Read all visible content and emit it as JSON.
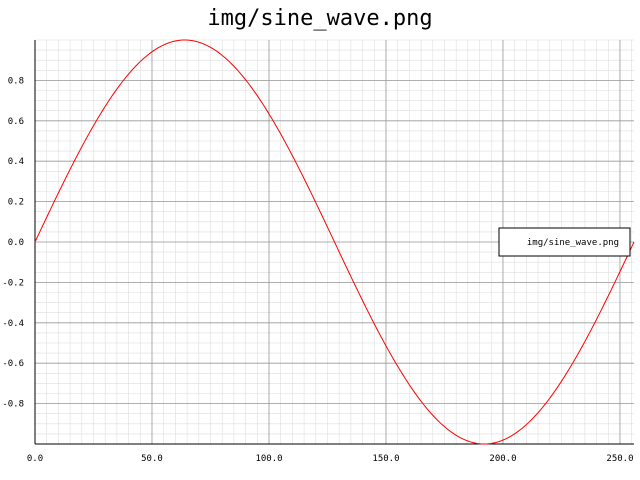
{
  "chart_data": {
    "type": "line",
    "title": "img/sine_wave.png",
    "xlabel": "",
    "ylabel": "",
    "xlim": [
      0,
      256
    ],
    "ylim": [
      -1,
      1
    ],
    "x_ticks": [
      0,
      50,
      100,
      150,
      200,
      250
    ],
    "x_tick_labels": [
      "0.0",
      "50.0",
      "100.0",
      "150.0",
      "200.0",
      "250.0"
    ],
    "y_ticks": [
      -0.8,
      -0.6,
      -0.4,
      -0.2,
      0.0,
      0.2,
      0.4,
      0.6,
      0.8
    ],
    "y_tick_labels": [
      "-0.8",
      "-0.6",
      "-0.4",
      "-0.2",
      "0.0",
      "0.2",
      "0.4",
      "0.6",
      "0.8"
    ],
    "grid": true,
    "minor_grid": true,
    "legend_position": "right-center",
    "series": [
      {
        "name": "img/sine_wave.png",
        "color": "#ff0000",
        "function": "sin(2*pi*x/256)",
        "x": [
          0,
          16,
          32,
          48,
          64,
          80,
          96,
          112,
          128,
          144,
          160,
          176,
          192,
          208,
          224,
          240,
          256
        ],
        "y": [
          0.0,
          0.383,
          0.707,
          0.924,
          1.0,
          0.924,
          0.707,
          0.383,
          0.0,
          -0.383,
          -0.707,
          -0.924,
          -1.0,
          -0.924,
          -0.707,
          -0.383,
          0.0
        ]
      }
    ]
  }
}
